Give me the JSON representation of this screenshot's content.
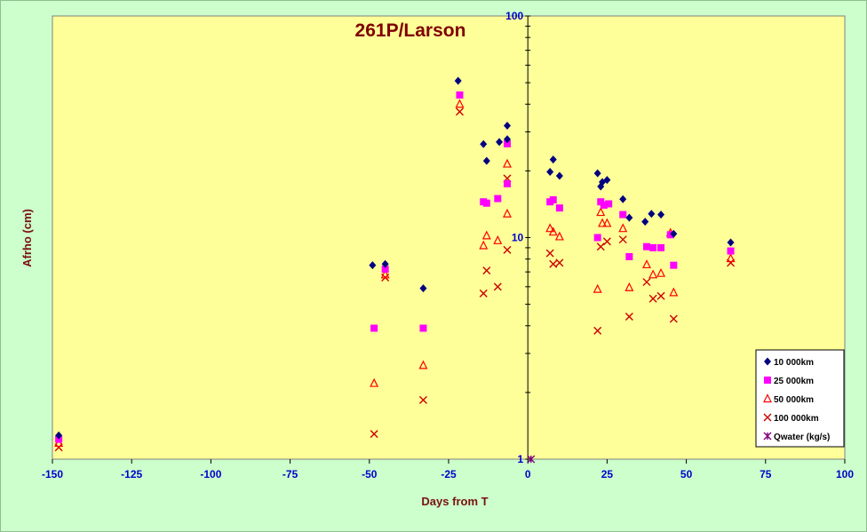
{
  "chart_data": {
    "type": "scatter",
    "title": "261P/Larson",
    "xlabel": "Days from  T",
    "ylabel": "Afrho  (cm)",
    "xlim": [
      -150,
      100
    ],
    "ylim": [
      1,
      100
    ],
    "yscale": "log",
    "x_ticks": [
      "-150",
      "-125",
      "-100",
      "-75",
      "-50",
      "-25",
      "0",
      "25",
      "50",
      "75",
      "100"
    ],
    "y_ticks": [
      "1",
      "10",
      "100"
    ],
    "grid": false,
    "legend_position": "bottom-right",
    "colors": {
      "plot_background": "#ffff99",
      "page_background": "#ccffcc",
      "tick_text": "#0000cc",
      "title_text": "#800000"
    },
    "series": [
      {
        "name": "10 000km",
        "marker": "diamond",
        "color": "#000080",
        "points": [
          [
            -148,
            1.28
          ],
          [
            -49,
            7.5
          ],
          [
            -45,
            7.6
          ],
          [
            -33,
            5.9
          ],
          [
            -22,
            51
          ],
          [
            -14,
            26.4
          ],
          [
            -13,
            22.2
          ],
          [
            -9,
            27
          ],
          [
            -6.5,
            32
          ],
          [
            -6.5,
            27.8
          ],
          [
            7,
            19.8
          ],
          [
            8,
            22.5
          ],
          [
            10,
            19
          ],
          [
            22,
            19.5
          ],
          [
            23,
            17
          ],
          [
            23.5,
            17.8
          ],
          [
            25,
            18.2
          ],
          [
            30,
            14.9
          ],
          [
            32,
            12.3
          ],
          [
            37,
            11.8
          ],
          [
            39,
            12.8
          ],
          [
            42,
            12.7
          ],
          [
            46,
            10.4
          ],
          [
            64,
            9.5
          ]
        ]
      },
      {
        "name": "25 000km",
        "marker": "square",
        "color": "#ff00ff",
        "points": [
          [
            -148,
            1.23
          ],
          [
            -48.5,
            3.9
          ],
          [
            -45,
            7.2
          ],
          [
            -33,
            3.9
          ],
          [
            -21.5,
            44
          ],
          [
            -14,
            14.5
          ],
          [
            -13,
            14.3
          ],
          [
            -9.5,
            15
          ],
          [
            -6.5,
            26.5
          ],
          [
            -6.5,
            17.5
          ],
          [
            7,
            14.5
          ],
          [
            8,
            14.8
          ],
          [
            10,
            13.6
          ],
          [
            22,
            10
          ],
          [
            23,
            14.5
          ],
          [
            24,
            14
          ],
          [
            25.5,
            14.2
          ],
          [
            30,
            12.7
          ],
          [
            32,
            8.2
          ],
          [
            37.5,
            9.1
          ],
          [
            39.5,
            9.0
          ],
          [
            42,
            9.0
          ],
          [
            45,
            10.3
          ],
          [
            46,
            7.5
          ],
          [
            64,
            8.7
          ]
        ]
      },
      {
        "name": "50 000km",
        "marker": "triangle",
        "color": "#ff0000",
        "points": [
          [
            -148,
            1.18
          ],
          [
            -48.5,
            2.2
          ],
          [
            -45,
            6.8
          ],
          [
            -33,
            2.65
          ],
          [
            -21.5,
            40
          ],
          [
            -14,
            9.2
          ],
          [
            -13,
            10.2
          ],
          [
            -9.5,
            9.7
          ],
          [
            -6.5,
            21.5
          ],
          [
            -6.5,
            12.8
          ],
          [
            7,
            11
          ],
          [
            8,
            10.6
          ],
          [
            10,
            10.1
          ],
          [
            22,
            5.85
          ],
          [
            23,
            13
          ],
          [
            23.5,
            11.6
          ],
          [
            25,
            11.6
          ],
          [
            30,
            11
          ],
          [
            32,
            5.95
          ],
          [
            37.5,
            7.55
          ],
          [
            39.5,
            6.8
          ],
          [
            42,
            6.9
          ],
          [
            45,
            10.5
          ],
          [
            46,
            5.65
          ],
          [
            64,
            8.05
          ]
        ]
      },
      {
        "name": "100 000km",
        "marker": "x",
        "color": "#cc0000",
        "points": [
          [
            -148,
            1.13
          ],
          [
            -48.5,
            1.3
          ],
          [
            -45,
            6.6
          ],
          [
            -33,
            1.85
          ],
          [
            -21.5,
            37
          ],
          [
            -14,
            5.6
          ],
          [
            -13,
            7.1
          ],
          [
            -9.5,
            6.0
          ],
          [
            -6.5,
            18.5
          ],
          [
            -6.5,
            8.8
          ],
          [
            7,
            8.5
          ],
          [
            8,
            7.6
          ],
          [
            10,
            7.7
          ],
          [
            22,
            3.8
          ],
          [
            23,
            9.1
          ],
          [
            25,
            9.6
          ],
          [
            30,
            9.8
          ],
          [
            32,
            4.4
          ],
          [
            37.5,
            6.3
          ],
          [
            39.5,
            5.3
          ],
          [
            42,
            5.45
          ],
          [
            46,
            4.3
          ],
          [
            64,
            7.7
          ]
        ]
      },
      {
        "name": "Qwater (kg/s)",
        "marker": "star",
        "color": "#800080",
        "points": [
          [
            1,
            1
          ]
        ]
      }
    ]
  }
}
